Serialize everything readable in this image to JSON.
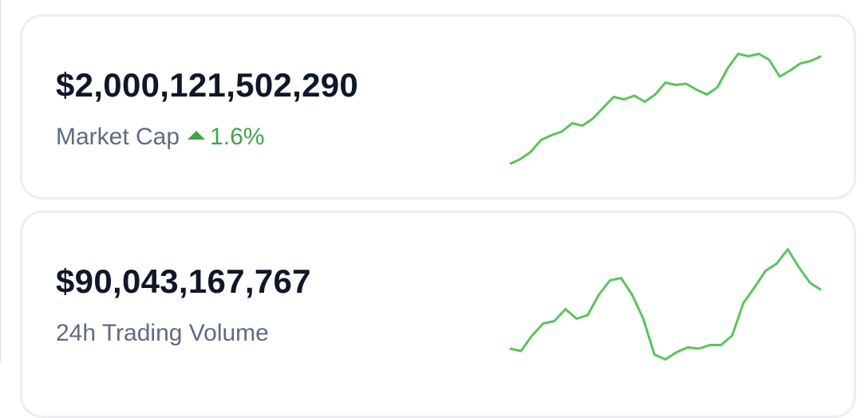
{
  "cards": [
    {
      "value": "$2,000,121,502,290",
      "label": "Market Cap",
      "change": "1.6%",
      "sparkline": [
        3,
        7,
        13,
        23,
        27,
        30,
        37,
        35,
        41,
        50,
        59,
        57,
        60,
        55,
        61,
        71,
        69,
        70,
        65,
        61,
        67,
        83,
        95,
        93,
        95,
        90,
        76,
        81,
        87,
        89,
        93
      ]
    },
    {
      "value": "$90,043,167,767",
      "label": "24h Trading Volume",
      "sparkline": [
        12,
        10,
        23,
        33,
        35,
        45,
        37,
        40,
        57,
        69,
        71,
        57,
        37,
        7,
        3,
        9,
        13,
        12,
        15,
        15,
        23,
        50,
        63,
        77,
        83,
        95,
        80,
        67,
        61
      ]
    }
  ]
}
